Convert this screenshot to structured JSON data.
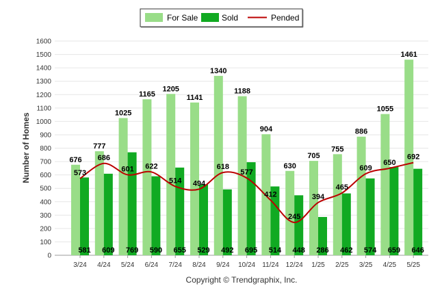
{
  "chart_data": {
    "type": "bar",
    "ylabel": "Number of Homes",
    "ylim": [
      0,
      1600
    ],
    "yticks": [
      0,
      100,
      200,
      300,
      400,
      500,
      600,
      700,
      800,
      900,
      1000,
      1100,
      1200,
      1300,
      1400,
      1500,
      1600
    ],
    "grid": true,
    "legend_position": "top-center",
    "categories": [
      "3/24",
      "4/24",
      "5/24",
      "6/24",
      "7/24",
      "8/24",
      "9/24",
      "10/24",
      "11/24",
      "12/24",
      "1/25",
      "2/25",
      "3/25",
      "4/25",
      "5/25"
    ],
    "series": [
      {
        "name": "For Sale",
        "type": "bar",
        "color": "#99dd88",
        "values": [
          676,
          777,
          1025,
          1165,
          1205,
          1141,
          1340,
          1188,
          904,
          630,
          705,
          755,
          886,
          1055,
          1461
        ]
      },
      {
        "name": "Sold",
        "type": "bar",
        "color": "#11aa22",
        "values": [
          581,
          609,
          769,
          590,
          655,
          529,
          492,
          695,
          514,
          448,
          286,
          462,
          574,
          659,
          646
        ]
      },
      {
        "name": "Pended",
        "type": "line",
        "color": "#bb0000",
        "values": [
          573,
          686,
          601,
          622,
          514,
          494,
          618,
          577,
          412,
          245,
          394,
          465,
          609,
          650,
          692
        ]
      }
    ]
  },
  "footer": {
    "copyright": "Copyright © Trendgraphix, Inc."
  }
}
